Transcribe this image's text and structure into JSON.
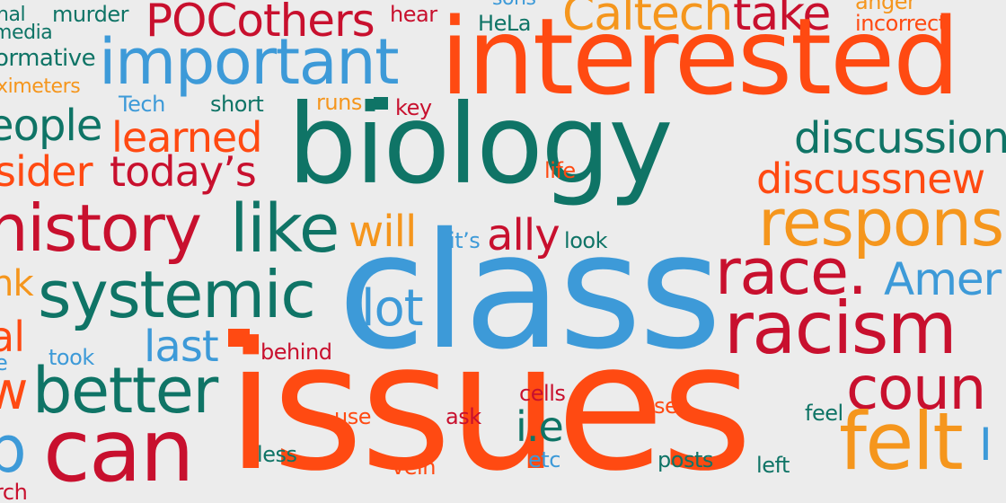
{
  "words": {
    "murder": "murder",
    "pocothers": "POCothers",
    "hear": "hear",
    "sons": "sons",
    "hela": "HeLa",
    "caltech": "Caltech",
    "take": "take",
    "anger": "anger",
    "incorrect": "incorrect",
    "nal": "nal",
    "media": "media",
    "formative": "ormative",
    "important": "important",
    "interested": "interested",
    "oximeters": "ximeters",
    "tech": "Tech",
    "short": "short",
    "runs": "runs",
    "key": "key",
    "people": "eople",
    "learned": "learned",
    "biology": "biology",
    "discussion": "discussion",
    "consider": "sider",
    "todays": "today’s",
    "life": "life",
    "discussnew": "discussnew",
    "history": "history",
    "like": "like",
    "will": "will",
    "its": "it’s",
    "ally": "ally",
    "look": "look",
    "respons": "respons",
    "nk": "nk",
    "systemic": "systemic",
    "class": "class",
    "race": "race.",
    "amer": "Amer",
    "al": "al",
    "lot": "lot",
    "racism": "racism",
    "last": "last",
    "took": "took",
    "behind": "behind",
    "e": "e",
    "better": "better",
    "issues": "issues",
    "coun": "coun",
    "cells": "cells",
    "see": "see",
    "use": "use",
    "ask": "ask",
    "ie": "i.e",
    "feel": "feel",
    "can": "can",
    "felt": "felt",
    "less": "less",
    "vein": "vein",
    "etc": "etc",
    "posts": "posts",
    "left": "left",
    "rch": "rch",
    "p": "p",
    "w": "w",
    "i": "I"
  },
  "colors": {
    "background": "#ececec",
    "red": "#c8102e",
    "orange": "#ff4a12",
    "amber": "#f5961d",
    "teal": "#0f7466",
    "blue": "#3d9ad8"
  }
}
